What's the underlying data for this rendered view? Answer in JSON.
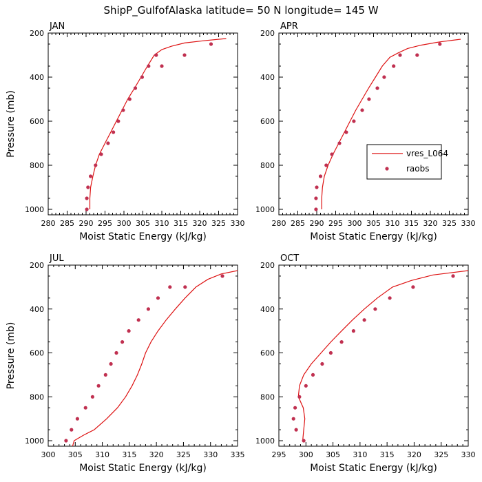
{
  "title": "ShipP_GulfofAlaska  latitude= 50 N longitude= 145 W",
  "colors": {
    "model": "#dd1111",
    "obs": "#c03050"
  },
  "legend": {
    "placement": "inside APR panel, right",
    "model_label": "vres_L064",
    "obs_label": "raobs"
  },
  "chart_data": [
    {
      "type": "line",
      "panel": "JAN",
      "xlabel": "Moist Static Energy (kJ/kg)",
      "ylabel": "Pressure (mb)",
      "xlim": [
        280,
        330
      ],
      "ylim": [
        1000,
        200
      ],
      "xticks": [
        "280",
        "285",
        "290",
        "295",
        "300",
        "305",
        "310",
        "315",
        "320",
        "325",
        "330"
      ],
      "yticks": [
        "200",
        "400",
        "600",
        "800",
        "1000"
      ],
      "series": [
        {
          "name": "vres_L064",
          "style": "line",
          "x": [
            291.0,
            291.0,
            291.2,
            291.8,
            292.5,
            293.5,
            295.0,
            296.5,
            298.0,
            299.5,
            301.0,
            302.8,
            304.5,
            306.2,
            308.0,
            310.0,
            312.5,
            316.0,
            321.0,
            327.0
          ],
          "y": [
            1000,
            950,
            900,
            850,
            800,
            750,
            700,
            650,
            600,
            550,
            500,
            450,
            400,
            350,
            300,
            275,
            260,
            245,
            235,
            225
          ]
        },
        {
          "name": "raobs",
          "style": "markers",
          "x": [
            290.2,
            290.2,
            290.5,
            291.2,
            292.5,
            294.0,
            295.8,
            297.2,
            298.5,
            299.8,
            301.5,
            303.0,
            304.8,
            306.5,
            308.5,
            310.0,
            316.0,
            323.0
          ],
          "y": [
            1000,
            950,
            900,
            850,
            800,
            750,
            700,
            650,
            600,
            550,
            500,
            450,
            400,
            350,
            300,
            350,
            300,
            250
          ]
        }
      ]
    },
    {
      "type": "line",
      "panel": "APR",
      "xlabel": "Moist Static Energy (kJ/kg)",
      "ylabel": "",
      "xlim": [
        280,
        330
      ],
      "ylim": [
        1000,
        200
      ],
      "xticks": [
        "280",
        "285",
        "290",
        "295",
        "300",
        "305",
        "310",
        "315",
        "320",
        "325",
        "330"
      ],
      "yticks": [
        "200",
        "400",
        "600",
        "800",
        "1000"
      ],
      "series": [
        {
          "name": "vres_L064",
          "style": "line",
          "x": [
            291.3,
            291.3,
            291.5,
            292.0,
            293.0,
            294.3,
            295.8,
            297.3,
            298.8,
            300.3,
            302.0,
            303.7,
            305.5,
            307.3,
            309.3,
            311.5,
            314.0,
            317.5,
            322.5,
            328.0
          ],
          "y": [
            1000,
            950,
            900,
            850,
            800,
            750,
            700,
            650,
            600,
            550,
            500,
            450,
            400,
            350,
            310,
            290,
            270,
            255,
            240,
            228
          ]
        },
        {
          "name": "raobs",
          "style": "markers",
          "x": [
            289.8,
            289.8,
            290.0,
            291.0,
            292.5,
            294.0,
            296.0,
            297.8,
            299.8,
            302.0,
            303.8,
            306.0,
            307.8,
            310.3,
            312.0,
            316.5,
            322.5
          ],
          "y": [
            1000,
            950,
            900,
            850,
            800,
            750,
            700,
            650,
            600,
            550,
            500,
            450,
            400,
            350,
            300,
            300,
            250
          ]
        }
      ]
    },
    {
      "type": "line",
      "panel": "JUL",
      "xlabel": "Moist Static Energy (kJ/kg)",
      "ylabel": "Pressure (mb)",
      "xlim": [
        300,
        335
      ],
      "ylim": [
        1000,
        200
      ],
      "xticks": [
        "300",
        "305",
        "310",
        "315",
        "320",
        "325",
        "330",
        "335"
      ],
      "yticks": [
        "200",
        "400",
        "600",
        "800",
        "1000"
      ],
      "series": [
        {
          "name": "vres_L064",
          "style": "line",
          "x": [
            304.5,
            304.8,
            306.5,
            308.5,
            310.8,
            312.8,
            314.3,
            315.5,
            316.5,
            317.3,
            318.0,
            319.0,
            320.3,
            321.8,
            323.5,
            325.3,
            327.3,
            329.5,
            332.0,
            335.0
          ],
          "y": [
            1025,
            1000,
            975,
            950,
            900,
            850,
            800,
            750,
            700,
            650,
            600,
            550,
            500,
            450,
            400,
            350,
            300,
            265,
            240,
            225
          ]
        },
        {
          "name": "raobs",
          "style": "markers",
          "x": [
            303.3,
            304.3,
            305.4,
            306.9,
            308.2,
            309.3,
            310.6,
            311.6,
            312.6,
            313.7,
            314.9,
            316.7,
            318.5,
            320.3,
            322.5,
            325.3,
            332.2
          ],
          "y": [
            1000,
            950,
            900,
            850,
            800,
            750,
            700,
            650,
            600,
            550,
            500,
            450,
            400,
            350,
            300,
            300,
            250
          ]
        }
      ]
    },
    {
      "type": "line",
      "panel": "OCT",
      "xlabel": "Moist Static Energy (kJ/kg)",
      "ylabel": "",
      "xlim": [
        295,
        330
      ],
      "ylim": [
        1000,
        200
      ],
      "xticks": [
        "295",
        "300",
        "305",
        "310",
        "315",
        "320",
        "325",
        "330"
      ],
      "yticks": [
        "200",
        "400",
        "600",
        "800",
        "1000"
      ],
      "series": [
        {
          "name": "vres_L064",
          "style": "line",
          "x": [
            299.4,
            299.6,
            299.8,
            299.5,
            298.6,
            298.8,
            299.6,
            301.0,
            302.8,
            304.6,
            306.6,
            308.6,
            310.8,
            313.2,
            316.0,
            319.5,
            323.5,
            330.0
          ],
          "y": [
            1000,
            950,
            900,
            850,
            800,
            750,
            700,
            650,
            600,
            550,
            500,
            450,
            400,
            350,
            300,
            270,
            245,
            225
          ]
        },
        {
          "name": "raobs",
          "style": "markers",
          "x": [
            299.6,
            298.2,
            297.7,
            298.0,
            298.8,
            300.0,
            301.3,
            303.0,
            304.6,
            306.6,
            308.8,
            310.8,
            312.8,
            315.5,
            319.8,
            327.2
          ],
          "y": [
            1000,
            950,
            900,
            850,
            800,
            750,
            700,
            650,
            600,
            550,
            500,
            450,
            400,
            350,
            300,
            250
          ]
        }
      ]
    }
  ]
}
